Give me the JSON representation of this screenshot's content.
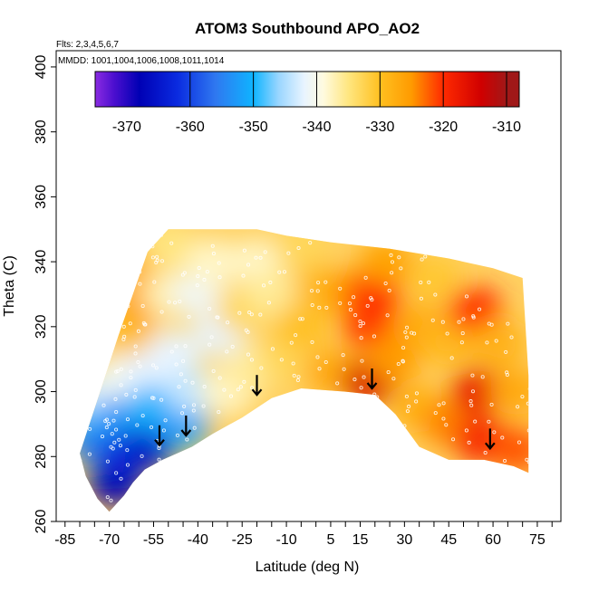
{
  "chart_data": {
    "type": "heatmap",
    "title": "ATOM3 Southbound APO_AO2",
    "subtitle_lines": [
      "Flts: 2,3,4,5,6,7",
      "MMDD: 1001,1004,1006,1008,1011,1014"
    ],
    "xlabel": "Latitude (deg N)",
    "ylabel": "Theta (C)",
    "xlim": [
      -88,
      83
    ],
    "ylim": [
      260,
      405
    ],
    "x_ticks": [
      -85,
      -70,
      -55,
      -40,
      -25,
      -10,
      5,
      15,
      30,
      45,
      60,
      75
    ],
    "x_minor_ticks": [
      -80,
      -75,
      -65,
      -60,
      -50,
      -45,
      -35,
      -30,
      -20,
      -15,
      -5,
      0,
      10,
      20,
      25,
      35,
      40,
      50,
      55,
      65,
      70,
      80
    ],
    "y_ticks": [
      260,
      280,
      300,
      320,
      340,
      360,
      380,
      400
    ],
    "colorbar": {
      "range": [
        -375,
        -308
      ],
      "ticks": [
        -370,
        -360,
        -350,
        -340,
        -330,
        -320,
        -310
      ],
      "dividers": [
        -360,
        -350,
        -340,
        -330,
        -320,
        -310
      ],
      "stops": [
        {
          "value": -375,
          "color": "#8b2be2"
        },
        {
          "value": -372,
          "color": "#4b0fcf"
        },
        {
          "value": -368,
          "color": "#0000b4"
        },
        {
          "value": -362,
          "color": "#0a2be0"
        },
        {
          "value": -356,
          "color": "#2f78f0"
        },
        {
          "value": -350,
          "color": "#0fb4ff"
        },
        {
          "value": -346,
          "color": "#9ad6ff"
        },
        {
          "value": -342,
          "color": "#e8f4ff"
        },
        {
          "value": -339,
          "color": "#fffbe0"
        },
        {
          "value": -335,
          "color": "#ffe680"
        },
        {
          "value": -330,
          "color": "#ffc020"
        },
        {
          "value": -325,
          "color": "#ff9a00"
        },
        {
          "value": -320,
          "color": "#ff2a00"
        },
        {
          "value": -314,
          "color": "#d00000"
        },
        {
          "value": -310,
          "color": "#a01818"
        }
      ]
    },
    "domain_top": [
      {
        "x": -72,
        "theta": 303
      },
      {
        "x": -67,
        "theta": 317
      },
      {
        "x": -62,
        "theta": 330
      },
      {
        "x": -57,
        "theta": 343
      },
      {
        "x": -50,
        "theta": 350
      },
      {
        "x": -20,
        "theta": 350
      },
      {
        "x": -10,
        "theta": 348
      },
      {
        "x": 5,
        "theta": 346
      },
      {
        "x": 25,
        "theta": 344
      },
      {
        "x": 45,
        "theta": 341
      },
      {
        "x": 60,
        "theta": 338
      },
      {
        "x": 70,
        "theta": 335
      },
      {
        "x": 72,
        "theta": 305
      }
    ],
    "domain_bottom": [
      {
        "x": 72,
        "theta": 275
      },
      {
        "x": 67,
        "theta": 277
      },
      {
        "x": 57,
        "theta": 279
      },
      {
        "x": 45,
        "theta": 279
      },
      {
        "x": 35,
        "theta": 283
      },
      {
        "x": 27,
        "theta": 293
      },
      {
        "x": 20,
        "theta": 299
      },
      {
        "x": 10,
        "theta": 300
      },
      {
        "x": -5,
        "theta": 301
      },
      {
        "x": -15,
        "theta": 298
      },
      {
        "x": -25,
        "theta": 292
      },
      {
        "x": -35,
        "theta": 287
      },
      {
        "x": -42,
        "theta": 283
      },
      {
        "x": -47,
        "theta": 281
      },
      {
        "x": -52,
        "theta": 279
      },
      {
        "x": -58,
        "theta": 276
      },
      {
        "x": -62,
        "theta": 272
      },
      {
        "x": -65,
        "theta": 268
      },
      {
        "x": -70,
        "theta": 263
      },
      {
        "x": -74,
        "theta": 267
      },
      {
        "x": -78,
        "theta": 274
      },
      {
        "x": -80,
        "theta": 281
      }
    ],
    "field_points": [
      {
        "lat": -75,
        "theta": 285,
        "value": -355
      },
      {
        "lat": -75,
        "theta": 295,
        "value": -350
      },
      {
        "lat": -72,
        "theta": 300,
        "value": -343
      },
      {
        "lat": -68,
        "theta": 272,
        "value": -368
      },
      {
        "lat": -65,
        "theta": 282,
        "value": -362
      },
      {
        "lat": -65,
        "theta": 292,
        "value": -353
      },
      {
        "lat": -65,
        "theta": 305,
        "value": -340
      },
      {
        "lat": -63,
        "theta": 318,
        "value": -330
      },
      {
        "lat": -60,
        "theta": 327,
        "value": -326
      },
      {
        "lat": -58,
        "theta": 338,
        "value": -327
      },
      {
        "lat": -58,
        "theta": 305,
        "value": -342
      },
      {
        "lat": -57,
        "theta": 283,
        "value": -365
      },
      {
        "lat": -55,
        "theta": 295,
        "value": -350
      },
      {
        "lat": -50,
        "theta": 345,
        "value": -335
      },
      {
        "lat": -50,
        "theta": 330,
        "value": -337
      },
      {
        "lat": -48,
        "theta": 312,
        "value": -342
      },
      {
        "lat": -45,
        "theta": 290,
        "value": -352
      },
      {
        "lat": -42,
        "theta": 300,
        "value": -344
      },
      {
        "lat": -40,
        "theta": 330,
        "value": -341
      },
      {
        "lat": -35,
        "theta": 340,
        "value": -338
      },
      {
        "lat": -32,
        "theta": 318,
        "value": -342
      },
      {
        "lat": -30,
        "theta": 300,
        "value": -338
      },
      {
        "lat": -25,
        "theta": 325,
        "value": -333
      },
      {
        "lat": -22,
        "theta": 307,
        "value": -336
      },
      {
        "lat": -20,
        "theta": 340,
        "value": -338
      },
      {
        "lat": -15,
        "theta": 330,
        "value": -336
      },
      {
        "lat": -10,
        "theta": 310,
        "value": -333
      },
      {
        "lat": -5,
        "theta": 345,
        "value": -333
      },
      {
        "lat": -5,
        "theta": 320,
        "value": -330
      },
      {
        "lat": 2,
        "theta": 332,
        "value": -329
      },
      {
        "lat": 5,
        "theta": 306,
        "value": -327
      },
      {
        "lat": 12,
        "theta": 330,
        "value": -325
      },
      {
        "lat": 18,
        "theta": 320,
        "value": -321
      },
      {
        "lat": 18,
        "theta": 303,
        "value": -315
      },
      {
        "lat": 20,
        "theta": 330,
        "value": -320
      },
      {
        "lat": 24,
        "theta": 340,
        "value": -326
      },
      {
        "lat": 26,
        "theta": 310,
        "value": -325
      },
      {
        "lat": 35,
        "theta": 320,
        "value": -327
      },
      {
        "lat": 35,
        "theta": 295,
        "value": -328
      },
      {
        "lat": 40,
        "theta": 335,
        "value": -331
      },
      {
        "lat": 45,
        "theta": 315,
        "value": -329
      },
      {
        "lat": 45,
        "theta": 290,
        "value": -324
      },
      {
        "lat": 54,
        "theta": 325,
        "value": -320
      },
      {
        "lat": 55,
        "theta": 300,
        "value": -317
      },
      {
        "lat": 56,
        "theta": 285,
        "value": -319
      },
      {
        "lat": 62,
        "theta": 315,
        "value": -328
      },
      {
        "lat": 68,
        "theta": 300,
        "value": -327
      },
      {
        "lat": 68,
        "theta": 282,
        "value": -322
      }
    ],
    "arrows": [
      {
        "lat": -53,
        "theta": 286
      },
      {
        "lat": -44,
        "theta": 289
      },
      {
        "lat": -20,
        "theta": 301.5
      },
      {
        "lat": 19,
        "theta": 303.5
      },
      {
        "lat": 59,
        "theta": 285
      }
    ]
  }
}
